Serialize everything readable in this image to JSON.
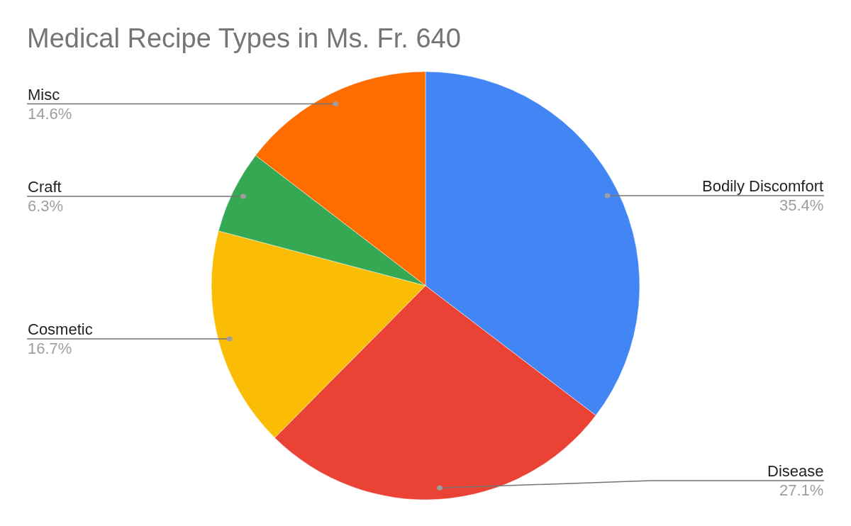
{
  "chart_data": {
    "type": "pie",
    "title": "Medical Recipe Types in Ms. Fr. 640",
    "categories": [
      "Bodily Discomfort",
      "Disease",
      "Cosmetic",
      "Craft",
      "Misc"
    ],
    "values": [
      35.4,
      27.1,
      16.7,
      6.3,
      14.6
    ],
    "colors": [
      "#4285f4",
      "#ea4335",
      "#fbbc04",
      "#34a853",
      "#ff6d01"
    ],
    "value_labels": [
      "35.4%",
      "27.1%",
      "16.7%",
      "6.3%",
      "14.6%"
    ],
    "legend": false
  }
}
